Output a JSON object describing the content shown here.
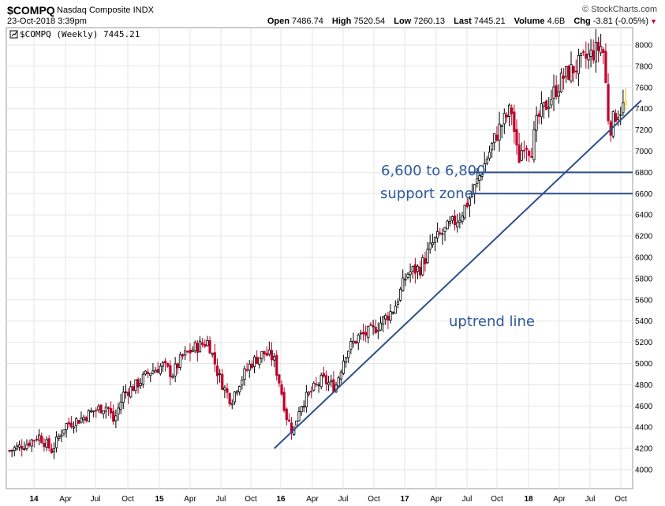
{
  "header": {
    "symbol": "$COMPQ",
    "name": "Nasdaq Composite",
    "exchange": "INDX",
    "datetime": "23-Oct-2018 3:39pm",
    "brand": "© StockCharts.com",
    "open_label": "Open",
    "open": "7486.74",
    "high_label": "High",
    "high": "7520.54",
    "low_label": "Low",
    "low": "7260.13",
    "last_label": "Last",
    "last": "7445.21",
    "volume_label": "Volume",
    "volume": "4.6B",
    "chg_label": "Chg",
    "chg": "-3.81 (-0.05%)"
  },
  "legend": "$COMPQ (Weekly) 7445.21",
  "annotations": {
    "support_line1": "6,600 to 6,800",
    "support_line2": "support zone",
    "uptrend": "uptrend line"
  },
  "colors": {
    "up": "#000000",
    "down": "#c0002a",
    "last": "#f0c000",
    "annotation": "#2e5a9a",
    "grid": "#e6e6e6"
  },
  "chart_data": {
    "type": "candlestick",
    "period": "weekly",
    "x_tick_labels": [
      "14",
      "Apr",
      "Jul",
      "Oct",
      "15",
      "Apr",
      "Jul",
      "Oct",
      "16",
      "Apr",
      "Jul",
      "Oct",
      "17",
      "Apr",
      "Jul",
      "Oct",
      "18",
      "Apr",
      "Jul",
      "Oct"
    ],
    "ylim": [
      3850,
      8150
    ],
    "y_ticks": [
      4000,
      4200,
      4400,
      4600,
      4800,
      5000,
      5200,
      5400,
      5600,
      5800,
      6000,
      6200,
      6400,
      6600,
      6800,
      7000,
      7200,
      7400,
      7600,
      7800,
      8000
    ],
    "series": [
      {
        "points": [
          [
            0,
            4180
          ],
          [
            5,
            4240
          ],
          [
            9,
            4320
          ],
          [
            13,
            4180
          ],
          [
            17,
            4420
          ],
          [
            22,
            4480
          ],
          [
            26,
            4560
          ],
          [
            30,
            4600
          ],
          [
            32,
            4450
          ],
          [
            35,
            4720
          ],
          [
            39,
            4800
          ],
          [
            43,
            4920
          ],
          [
            47,
            4980
          ],
          [
            50,
            4900
          ],
          [
            53,
            5060
          ],
          [
            57,
            5150
          ],
          [
            61,
            5210
          ],
          [
            64,
            4900
          ],
          [
            66,
            4760
          ],
          [
            68,
            4650
          ],
          [
            70,
            4800
          ],
          [
            74,
            5000
          ],
          [
            78,
            5100
          ],
          [
            81,
            5050
          ],
          [
            83,
            4800
          ],
          [
            85,
            4500
          ],
          [
            87,
            4350
          ],
          [
            89,
            4600
          ],
          [
            93,
            4750
          ],
          [
            96,
            4850
          ],
          [
            98,
            4810
          ],
          [
            100,
            4780
          ],
          [
            103,
            5100
          ],
          [
            107,
            5250
          ],
          [
            111,
            5300
          ],
          [
            115,
            5420
          ],
          [
            118,
            5520
          ],
          [
            122,
            5850
          ],
          [
            126,
            5900
          ],
          [
            130,
            6140
          ],
          [
            134,
            6260
          ],
          [
            138,
            6380
          ],
          [
            142,
            6600
          ],
          [
            146,
            6900
          ],
          [
            150,
            7200
          ],
          [
            154,
            7400
          ],
          [
            156,
            6900
          ],
          [
            158,
            7100
          ],
          [
            160,
            7000
          ],
          [
            162,
            7300
          ],
          [
            166,
            7500
          ],
          [
            170,
            7700
          ],
          [
            174,
            7800
          ],
          [
            178,
            7900
          ],
          [
            182,
            8000
          ],
          [
            184,
            7200
          ],
          [
            186,
            7350
          ],
          [
            189,
            7445
          ]
        ],
        "t_start": 0,
        "t_end": 249
      }
    ],
    "support_zone": [
      6600,
      6800
    ],
    "uptrend_line": {
      "from": {
        "x": 107,
        "y": 4200
      },
      "to": {
        "x": 249,
        "y": 7330
      }
    }
  }
}
